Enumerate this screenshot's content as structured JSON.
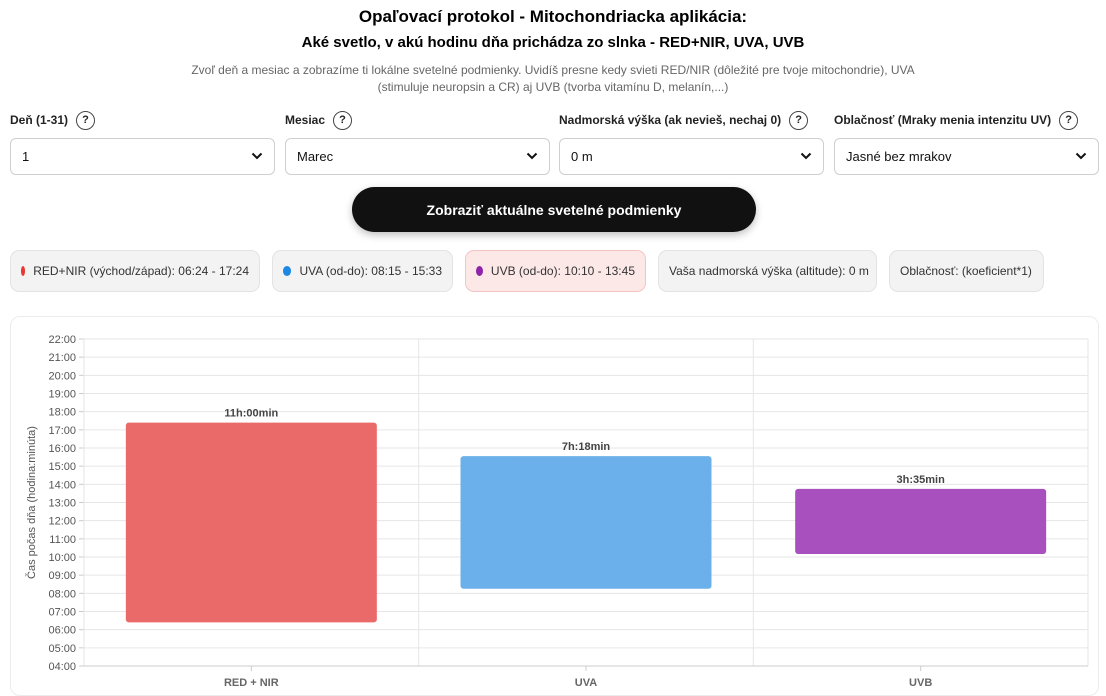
{
  "header": {
    "title": "Opaľovací protokol - Mitochondriacka aplikácia:",
    "subtitle": "Aké svetlo, v akú hodinu dňa prichádza zo slnka - RED+NIR, UVA, UVB",
    "description": "Zvoľ deň a mesiac a zobrazíme ti lokálne svetelné podmienky. Uvidíš presne kedy svieti RED/NIR (dôležité pre tvoje mitochondrie), UVA (stimuluje neuropsin a CR) aj UVB (tvorba vitamínu D, melanín,...)"
  },
  "form": {
    "help_symbol": "?",
    "day": {
      "label": "Deň (1-31)",
      "value": "1"
    },
    "month": {
      "label": "Mesiac",
      "value": "Marec"
    },
    "altitude": {
      "label": "Nadmorská výška (ak nevieš, nechaj 0)",
      "value": "0 m"
    },
    "clouds": {
      "label": "Oblačnosť (Mraky menia intenzitu UV)",
      "value": "Jasné bez mrakov"
    }
  },
  "button": {
    "label": "Zobraziť aktuálne svetelné podmienky"
  },
  "info": {
    "red": {
      "text": "RED+NIR (východ/západ): 06:24 - 17:24",
      "color": "#e53935"
    },
    "uva": {
      "text": "UVA (od-do): 08:15 - 15:33",
      "color": "#1e88e5"
    },
    "uvb": {
      "text": "UVB (od-do): 10:10 - 13:45",
      "color": "#8e24aa"
    },
    "altitude": {
      "text": "Vaša nadmorská výška (altitude): 0 m"
    },
    "clouds": {
      "text": "Oblačnosť: (koeficient*1)"
    }
  },
  "chart_data": {
    "type": "bar",
    "subtype": "floating-range",
    "ylabel": "Čas počas dňa (hodina:minúta)",
    "ylim": [
      "04:00",
      "22:00"
    ],
    "yticks": [
      "04:00",
      "05:00",
      "06:00",
      "07:00",
      "08:00",
      "09:00",
      "10:00",
      "11:00",
      "12:00",
      "13:00",
      "14:00",
      "15:00",
      "16:00",
      "17:00",
      "18:00",
      "19:00",
      "20:00",
      "21:00",
      "22:00"
    ],
    "grid": true,
    "categories": [
      "RED + NIR",
      "UVA",
      "UVB"
    ],
    "ranges": [
      [
        "06:24",
        "17:24"
      ],
      [
        "08:15",
        "15:33"
      ],
      [
        "10:10",
        "13:45"
      ]
    ],
    "labels": [
      "11h:00min",
      "7h:18min",
      "3h:35min"
    ],
    "colors": [
      "#ea6a6a",
      "#6bb0ea",
      "#a851be"
    ]
  }
}
